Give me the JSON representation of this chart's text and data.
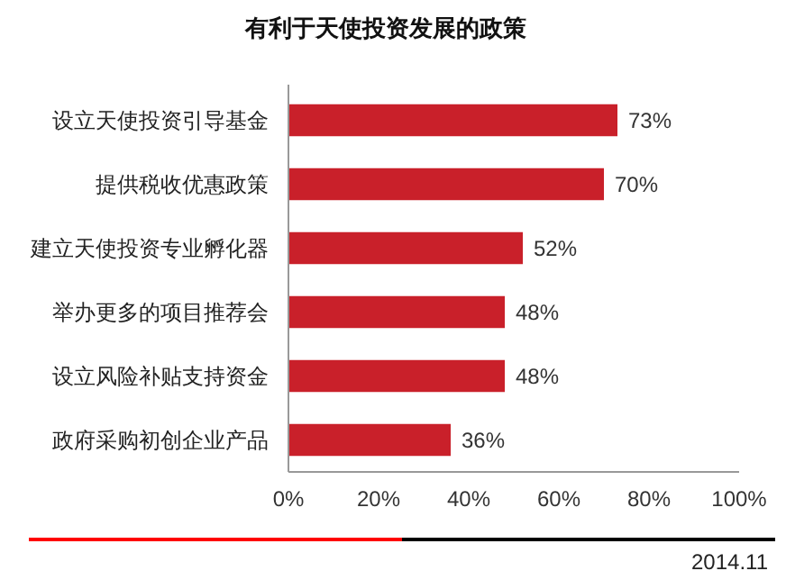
{
  "chart_data": {
    "type": "bar",
    "orientation": "horizontal",
    "title": "有利于天使投资发展的政策",
    "categories": [
      "设立天使投资引导基金",
      "提供税收优惠政策",
      "建立天使投资专业孵化器",
      "举办更多的项目推荐会",
      "设立风险补贴支持资金",
      "政府采购初创企业产品"
    ],
    "values": [
      73,
      70,
      52,
      48,
      48,
      36
    ],
    "color": "#c9202a",
    "value_labels": [
      "73%",
      "70%",
      "52%",
      "48%",
      "48%",
      "36%"
    ],
    "xlim": [
      0,
      100
    ],
    "xticks": [
      {
        "value": 0,
        "label": "0%"
      },
      {
        "value": 20,
        "label": "20%"
      },
      {
        "value": 40,
        "label": "40%"
      },
      {
        "value": 60,
        "label": "60%"
      },
      {
        "value": 80,
        "label": "80%"
      },
      {
        "value": 100,
        "label": "100%"
      }
    ],
    "annotations": [
      "2014.11"
    ]
  }
}
